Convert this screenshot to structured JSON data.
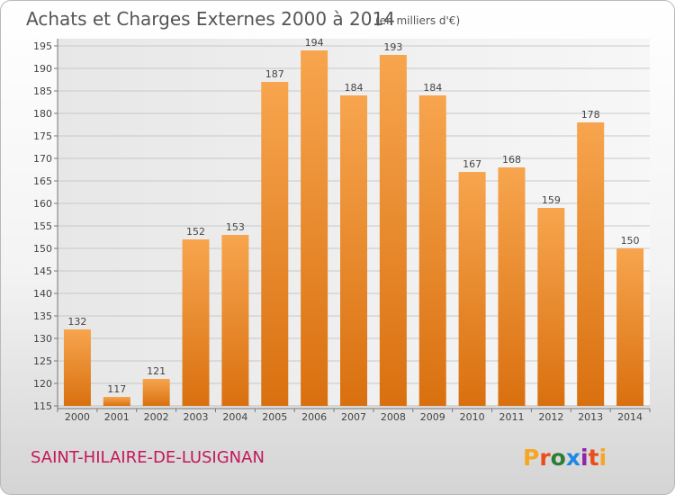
{
  "chart_data": {
    "type": "bar",
    "title": "Achats et Charges Externes 2000 à 2014",
    "subtitle": "(en milliers d'€)",
    "categories": [
      "2000",
      "2001",
      "2002",
      "2003",
      "2004",
      "2005",
      "2006",
      "2007",
      "2008",
      "2009",
      "2010",
      "2011",
      "2012",
      "2013",
      "2014"
    ],
    "values": [
      132,
      117,
      121,
      152,
      153,
      187,
      194,
      184,
      193,
      184,
      167,
      168,
      159,
      178,
      150
    ],
    "ylim": [
      115,
      195
    ],
    "yticks": [
      115,
      120,
      125,
      130,
      135,
      140,
      145,
      150,
      155,
      160,
      165,
      170,
      175,
      180,
      185,
      190,
      195
    ],
    "grid": true,
    "xlabel": "",
    "ylabel": "",
    "bar_color": "#f0922e"
  },
  "footer": {
    "place": "SAINT-HILAIRE-DE-LUSIGNAN",
    "place_color": "#c2185b",
    "logo": "Proxiti",
    "logo_colors": [
      "#f5a623",
      "#e94e1b",
      "#2e7d32",
      "#1e88e5",
      "#8e24aa",
      "#e94e1b",
      "#f5a623"
    ]
  }
}
